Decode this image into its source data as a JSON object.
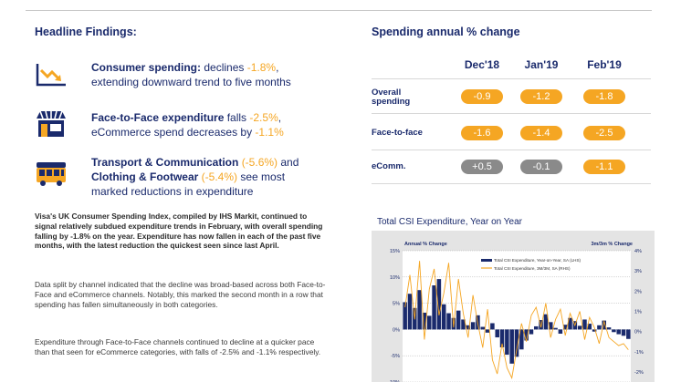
{
  "left": {
    "heading": "Headline Findings:",
    "findings": [
      {
        "icon": "trend-down-icon",
        "bold": "Consumer spending:",
        "text1": " declines ",
        "value1": "-1.8%",
        "text1b": ",",
        "line2": "extending downward trend to five months"
      },
      {
        "icon": "shop-icon",
        "bold": "Face-to-Face expenditure",
        "text1": " falls ",
        "value1": "-2.5%",
        "text1b": ",",
        "line2a": "eCommerce spend decreases by ",
        "value2": "-1.1%"
      },
      {
        "icon": "bus-icon",
        "bold": "Transport & Communication",
        "value1": "(-5.6%)",
        "text1": " and",
        "bold2": "Clothing & Footwear",
        "value2": "(-5.4%)",
        "text2": " see most",
        "line3": "marked reductions in expenditure"
      }
    ],
    "paragraphs": [
      "Visa's UK Consumer Spending Index, compiled by IHS Markit, continued to signal relatively subdued expenditure trends in February, with overall spending falling by -1.8% on the year. Expenditure has now fallen in each of the past five months, with the latest reduction the quickest seen since last April.",
      "Data split by channel indicated that the decline was broad-based across both Face-to-Face and eCommerce channels. Notably, this marked the second month in a row that spending has fallen simultaneously in both categories.",
      "Expenditure through Face-to-Face channels continued to decline at a quicker pace than that seen for eCommerce categories, with falls of -2.5% and -1.1% respectively."
    ]
  },
  "table": {
    "heading": "Spending annual % change",
    "columns": [
      "Dec'18",
      "Jan'19",
      "Feb'19"
    ],
    "rows": [
      {
        "label1": "Overall",
        "label2": "spending",
        "values": [
          "-0.9",
          "-1.2",
          "-1.8"
        ],
        "grey": [
          false,
          false,
          false
        ]
      },
      {
        "label1": "Face-to-face",
        "label2": "",
        "values": [
          "-1.6",
          "-1.4",
          "-2.5"
        ],
        "grey": [
          false,
          false,
          false
        ]
      },
      {
        "label1": "eComm.",
        "label2": "",
        "values": [
          "+0.5",
          "-0.1",
          "-1.1"
        ],
        "grey": [
          true,
          true,
          false
        ]
      }
    ]
  },
  "colors": {
    "navy": "#1a2a6c",
    "orange": "#f5a623",
    "grey": "#8a8a8a"
  },
  "chart_data": {
    "type": "bar",
    "title": "Total CSI Expenditure, Year on Year",
    "ylabel_left": "Annual % Change",
    "ylabel_right": "3m/3m % Change",
    "yticks_left": [
      "15%",
      "10%",
      "5%",
      "0%",
      "-5%",
      "-10%"
    ],
    "yticks_right": [
      "4%",
      "3%",
      "2%",
      "1%",
      "0%",
      "-1%",
      "-2%"
    ],
    "ylim_left": [
      -10,
      15
    ],
    "ylim_right": [
      -2.5,
      4
    ],
    "series": [
      {
        "name": "Total CSI Expenditure, Year-on-Year, SA (LHS)",
        "kind": "bar",
        "color": "#1a2a6c",
        "values": [
          5.2,
          6.8,
          4.1,
          7.5,
          3.2,
          2.6,
          8.4,
          9.6,
          4.8,
          3.1,
          2.2,
          3.6,
          1.9,
          0.8,
          1.4,
          2.7,
          0.5,
          -0.6,
          1.2,
          -1.5,
          -3.4,
          -4.8,
          -6.5,
          -5.2,
          -3.8,
          -2.1,
          -0.9,
          0.6,
          1.8,
          2.9,
          1.4,
          0.3,
          -0.8,
          0.9,
          2.2,
          1.6,
          0.7,
          1.9,
          1.1,
          -0.4,
          0.8,
          1.7,
          0.4,
          -0.5,
          -0.9,
          -1.2,
          -1.8
        ]
      },
      {
        "name": "Total CSI Expenditure, 3M/3M, SA (RHS)",
        "kind": "line",
        "color": "#f5a623",
        "values": [
          1.2,
          2.8,
          0.6,
          3.5,
          -0.4,
          2.1,
          3.1,
          0.8,
          1.9,
          3.4,
          0.2,
          2.6,
          0.9,
          -0.3,
          1.8,
          0.4,
          -0.8,
          1.1,
          -1.4,
          -2.1,
          -0.6,
          -1.8,
          -2.3,
          -0.9,
          0.4,
          -0.5,
          0.8,
          1.2,
          0.2,
          1.4,
          -0.3,
          0.6,
          1.1,
          -0.2,
          0.9,
          0.3,
          1.0,
          -0.4,
          0.7,
          0.2,
          -0.6,
          0.5,
          -0.3,
          -0.5,
          -0.7,
          -0.6,
          -0.9
        ]
      }
    ]
  }
}
